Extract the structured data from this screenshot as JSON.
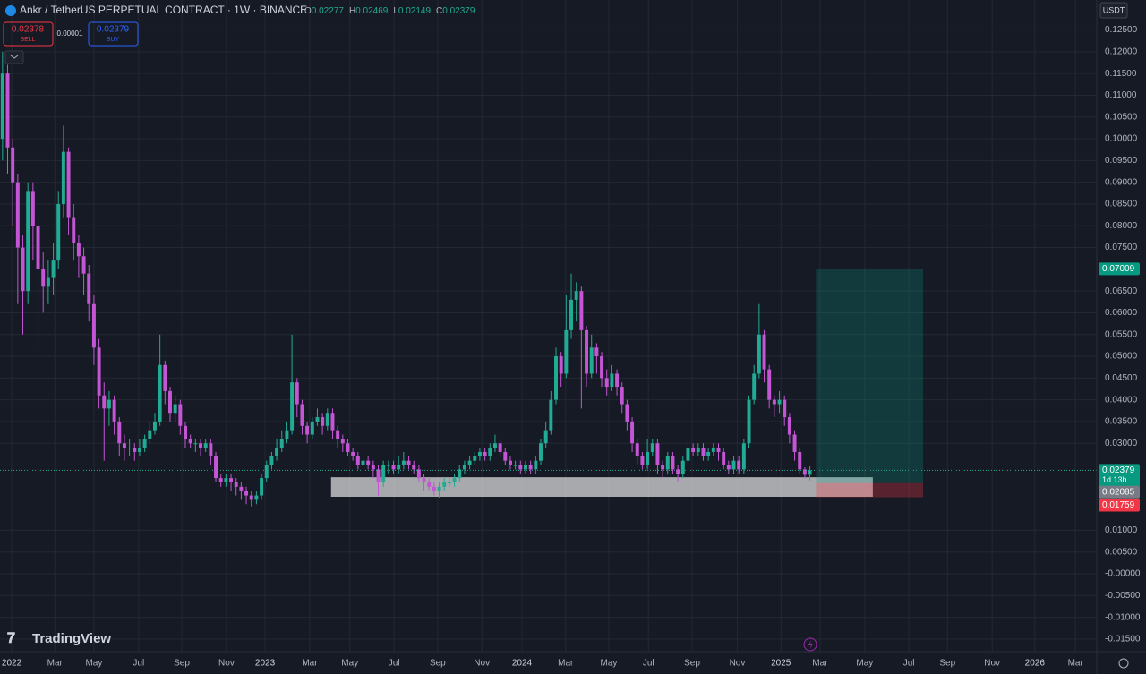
{
  "header": {
    "title": "Ankr / TetherUS PERPETUAL CONTRACT · 1W · BINANCE",
    "ohlc_labels": [
      "O",
      "H",
      "L",
      "C"
    ]
  },
  "trade": {
    "sell_price": 0.02378,
    "sell_label": "SELL",
    "spread": 1e-05,
    "buy_price": 0.02379,
    "buy_label": "BUY"
  },
  "currency": "USDT",
  "countdown": "1d 13h",
  "logo": "TradingView",
  "chart_data": {
    "type": "candlestick",
    "up_color": "#22ab94",
    "down_color": "#c455d4",
    "grid": true,
    "open": [
      0.1,
      0.115,
      0.098,
      0.09,
      0.075,
      0.065,
      0.088,
      0.08,
      0.07,
      0.066,
      0.068,
      0.072,
      0.085,
      0.097,
      0.082,
      0.076,
      0.073,
      0.069,
      0.062,
      0.052,
      0.041,
      0.038,
      0.04,
      0.035,
      0.03,
      0.029,
      0.029,
      0.028,
      0.029,
      0.031,
      0.033,
      0.035,
      0.048,
      0.042,
      0.037,
      0.039,
      0.034,
      0.031,
      0.03,
      0.03,
      0.029,
      0.03,
      0.027,
      0.022,
      0.021,
      0.022,
      0.021,
      0.02,
      0.019,
      0.018,
      0.017,
      0.018,
      0.022,
      0.025,
      0.027,
      0.029,
      0.031,
      0.033,
      0.044,
      0.039,
      0.034,
      0.032,
      0.035,
      0.036,
      0.034,
      0.037,
      0.033,
      0.031,
      0.03,
      0.028,
      0.027,
      0.025,
      0.026,
      0.025,
      0.024,
      0.021,
      0.025,
      0.025,
      0.024,
      0.025,
      0.026,
      0.025,
      0.024,
      0.022,
      0.021,
      0.02,
      0.019,
      0.02,
      0.021,
      0.021,
      0.022,
      0.024,
      0.025,
      0.026,
      0.027,
      0.028,
      0.027,
      0.029,
      0.03,
      0.028,
      0.026,
      0.025,
      0.025,
      0.024,
      0.025,
      0.024,
      0.026,
      0.03,
      0.033,
      0.04,
      0.05,
      0.046,
      0.056,
      0.063,
      0.065,
      0.056,
      0.046,
      0.052,
      0.05,
      0.045,
      0.043,
      0.046,
      0.043,
      0.039,
      0.035,
      0.03,
      0.027,
      0.025,
      0.028,
      0.03,
      0.025,
      0.024,
      0.027,
      0.024,
      0.023,
      0.026,
      0.029,
      0.028,
      0.029,
      0.027,
      0.028,
      0.029,
      0.028,
      0.025,
      0.024,
      0.026,
      0.024,
      0.03,
      0.04,
      0.046,
      0.055,
      0.047,
      0.04,
      0.039,
      0.04,
      0.036,
      0.032,
      0.028,
      0.024,
      0.02277
    ],
    "high": [
      0.12,
      0.117,
      0.1,
      0.092,
      0.078,
      0.09,
      0.09,
      0.082,
      0.074,
      0.072,
      0.076,
      0.088,
      0.103,
      0.098,
      0.085,
      0.078,
      0.075,
      0.071,
      0.064,
      0.054,
      0.044,
      0.042,
      0.041,
      0.036,
      0.032,
      0.031,
      0.03,
      0.031,
      0.032,
      0.035,
      0.037,
      0.055,
      0.049,
      0.043,
      0.041,
      0.04,
      0.035,
      0.032,
      0.031,
      0.031,
      0.031,
      0.031,
      0.028,
      0.023,
      0.023,
      0.023,
      0.022,
      0.021,
      0.02,
      0.019,
      0.019,
      0.023,
      0.026,
      0.028,
      0.031,
      0.033,
      0.035,
      0.055,
      0.045,
      0.04,
      0.035,
      0.036,
      0.038,
      0.037,
      0.038,
      0.038,
      0.034,
      0.032,
      0.031,
      0.029,
      0.028,
      0.027,
      0.027,
      0.026,
      0.025,
      0.026,
      0.026,
      0.026,
      0.027,
      0.028,
      0.027,
      0.026,
      0.025,
      0.023,
      0.022,
      0.021,
      0.021,
      0.022,
      0.022,
      0.023,
      0.025,
      0.026,
      0.027,
      0.028,
      0.029,
      0.029,
      0.03,
      0.032,
      0.031,
      0.029,
      0.027,
      0.026,
      0.026,
      0.026,
      0.026,
      0.027,
      0.031,
      0.035,
      0.042,
      0.052,
      0.051,
      0.064,
      0.069,
      0.067,
      0.066,
      0.057,
      0.055,
      0.053,
      0.051,
      0.047,
      0.048,
      0.047,
      0.044,
      0.04,
      0.036,
      0.031,
      0.028,
      0.031,
      0.031,
      0.031,
      0.026,
      0.028,
      0.028,
      0.025,
      0.027,
      0.03,
      0.03,
      0.03,
      0.03,
      0.029,
      0.03,
      0.03,
      0.029,
      0.026,
      0.027,
      0.027,
      0.031,
      0.041,
      0.048,
      0.062,
      0.056,
      0.048,
      0.041,
      0.042,
      0.041,
      0.037,
      0.033,
      0.029,
      0.0245,
      0.02469
    ],
    "low": [
      0.095,
      0.092,
      0.08,
      0.062,
      0.055,
      0.062,
      0.072,
      0.052,
      0.06,
      0.062,
      0.064,
      0.07,
      0.082,
      0.078,
      0.072,
      0.068,
      0.064,
      0.058,
      0.048,
      0.038,
      0.026,
      0.034,
      0.032,
      0.027,
      0.026,
      0.027,
      0.026,
      0.027,
      0.028,
      0.03,
      0.032,
      0.034,
      0.039,
      0.035,
      0.035,
      0.032,
      0.029,
      0.029,
      0.028,
      0.027,
      0.028,
      0.025,
      0.021,
      0.02,
      0.02,
      0.019,
      0.018,
      0.017,
      0.016,
      0.0155,
      0.016,
      0.017,
      0.021,
      0.024,
      0.026,
      0.028,
      0.03,
      0.032,
      0.036,
      0.032,
      0.03,
      0.031,
      0.034,
      0.032,
      0.033,
      0.031,
      0.029,
      0.028,
      0.027,
      0.026,
      0.024,
      0.024,
      0.024,
      0.022,
      0.018,
      0.02,
      0.023,
      0.023,
      0.023,
      0.024,
      0.024,
      0.023,
      0.021,
      0.019,
      0.019,
      0.018,
      0.0175,
      0.019,
      0.02,
      0.02,
      0.021,
      0.023,
      0.024,
      0.025,
      0.026,
      0.026,
      0.026,
      0.028,
      0.027,
      0.025,
      0.024,
      0.024,
      0.023,
      0.023,
      0.023,
      0.023,
      0.025,
      0.029,
      0.032,
      0.039,
      0.043,
      0.045,
      0.054,
      0.058,
      0.038,
      0.043,
      0.045,
      0.046,
      0.043,
      0.041,
      0.042,
      0.041,
      0.037,
      0.033,
      0.028,
      0.025,
      0.024,
      0.024,
      0.027,
      0.023,
      0.022,
      0.023,
      0.023,
      0.021,
      0.022,
      0.025,
      0.027,
      0.027,
      0.026,
      0.026,
      0.027,
      0.026,
      0.024,
      0.023,
      0.023,
      0.023,
      0.023,
      0.029,
      0.039,
      0.045,
      0.044,
      0.038,
      0.036,
      0.037,
      0.034,
      0.03,
      0.026,
      0.023,
      0.022,
      0.02149
    ],
    "close": [
      0.115,
      0.098,
      0.09,
      0.075,
      0.065,
      0.088,
      0.08,
      0.07,
      0.066,
      0.068,
      0.072,
      0.085,
      0.097,
      0.082,
      0.076,
      0.073,
      0.069,
      0.062,
      0.052,
      0.041,
      0.038,
      0.04,
      0.035,
      0.03,
      0.029,
      0.029,
      0.028,
      0.029,
      0.031,
      0.033,
      0.035,
      0.048,
      0.042,
      0.037,
      0.039,
      0.034,
      0.031,
      0.03,
      0.03,
      0.029,
      0.03,
      0.027,
      0.022,
      0.021,
      0.022,
      0.021,
      0.02,
      0.019,
      0.018,
      0.017,
      0.018,
      0.022,
      0.025,
      0.027,
      0.029,
      0.031,
      0.033,
      0.044,
      0.039,
      0.034,
      0.032,
      0.035,
      0.036,
      0.034,
      0.037,
      0.033,
      0.031,
      0.03,
      0.028,
      0.027,
      0.025,
      0.026,
      0.025,
      0.024,
      0.021,
      0.025,
      0.025,
      0.024,
      0.025,
      0.026,
      0.025,
      0.024,
      0.022,
      0.021,
      0.02,
      0.019,
      0.02,
      0.021,
      0.021,
      0.022,
      0.024,
      0.025,
      0.026,
      0.027,
      0.028,
      0.027,
      0.029,
      0.03,
      0.028,
      0.026,
      0.025,
      0.025,
      0.024,
      0.025,
      0.024,
      0.026,
      0.03,
      0.033,
      0.04,
      0.05,
      0.046,
      0.056,
      0.063,
      0.065,
      0.056,
      0.046,
      0.052,
      0.05,
      0.045,
      0.043,
      0.046,
      0.043,
      0.039,
      0.035,
      0.03,
      0.027,
      0.025,
      0.028,
      0.03,
      0.025,
      0.024,
      0.027,
      0.024,
      0.023,
      0.026,
      0.029,
      0.028,
      0.029,
      0.027,
      0.028,
      0.029,
      0.028,
      0.025,
      0.024,
      0.026,
      0.024,
      0.03,
      0.04,
      0.046,
      0.055,
      0.047,
      0.04,
      0.039,
      0.04,
      0.036,
      0.032,
      0.028,
      0.024,
      0.02277,
      0.02379
    ],
    "xlim": [
      -0.5,
      215.5
    ],
    "xticks": [
      {
        "value": 1.8,
        "label": "2022"
      },
      {
        "value": 10.3,
        "label": "Mar"
      },
      {
        "value": 18.0,
        "label": "May"
      },
      {
        "value": 26.8,
        "label": "Jul"
      },
      {
        "value": 35.3,
        "label": "Sep"
      },
      {
        "value": 44.1,
        "label": "Nov"
      },
      {
        "value": 51.7,
        "label": "2023"
      },
      {
        "value": 60.5,
        "label": "Mar"
      },
      {
        "value": 68.4,
        "label": "May"
      },
      {
        "value": 77.1,
        "label": "Jul"
      },
      {
        "value": 85.7,
        "label": "Sep"
      },
      {
        "value": 94.4,
        "label": "Nov"
      },
      {
        "value": 102.3,
        "label": "2024"
      },
      {
        "value": 110.9,
        "label": "Mar"
      },
      {
        "value": 119.4,
        "label": "May"
      },
      {
        "value": 127.2,
        "label": "Jul"
      },
      {
        "value": 135.8,
        "label": "Sep"
      },
      {
        "value": 144.7,
        "label": "Nov"
      },
      {
        "value": 153.3,
        "label": "2025"
      },
      {
        "value": 161.0,
        "label": "Mar"
      },
      {
        "value": 169.8,
        "label": "May"
      },
      {
        "value": 178.5,
        "label": "Jul"
      },
      {
        "value": 186.1,
        "label": "Sep"
      },
      {
        "value": 194.9,
        "label": "Nov"
      },
      {
        "value": 203.3,
        "label": "2026"
      },
      {
        "value": 211.3,
        "label": "Mar"
      }
    ],
    "ylim": [
      -0.0179,
      0.1315
    ],
    "yticks": [
      {
        "value": 0.125,
        "label": "0.12500"
      },
      {
        "value": 0.12,
        "label": "0.12000"
      },
      {
        "value": 0.115,
        "label": "0.11500"
      },
      {
        "value": 0.11,
        "label": "0.11000"
      },
      {
        "value": 0.105,
        "label": "0.10500"
      },
      {
        "value": 0.1,
        "label": "0.10000"
      },
      {
        "value": 0.095,
        "label": "0.09500"
      },
      {
        "value": 0.09,
        "label": "0.09000"
      },
      {
        "value": 0.085,
        "label": "0.08500"
      },
      {
        "value": 0.08,
        "label": "0.08000"
      },
      {
        "value": 0.075,
        "label": "0.07500"
      },
      {
        "value": 0.065,
        "label": "0.06500"
      },
      {
        "value": 0.06,
        "label": "0.06000"
      },
      {
        "value": 0.055,
        "label": "0.05500"
      },
      {
        "value": 0.05,
        "label": "0.05000"
      },
      {
        "value": 0.045,
        "label": "0.04500"
      },
      {
        "value": 0.04,
        "label": "0.04000"
      },
      {
        "value": 0.035,
        "label": "0.03500"
      },
      {
        "value": 0.03,
        "label": "0.03000"
      },
      {
        "value": 0.01,
        "label": "0.01000"
      },
      {
        "value": 0.005,
        "label": "0.00500"
      },
      {
        "value": 0,
        "label": "-0.00000"
      },
      {
        "value": -0.005,
        "label": "-0.00500"
      },
      {
        "value": -0.01,
        "label": "-0.01000"
      },
      {
        "value": -0.015,
        "label": "-0.01500"
      }
    ],
    "zone": {
      "top": 0.0222,
      "bottom": 0.0177,
      "start": 64.7,
      "end": 171.4,
      "color": "#d9d9d9"
    },
    "position": {
      "entry": 0.02085,
      "target": 0.07009,
      "stop": 0.01759,
      "start": 160.2,
      "end": 181.3
    }
  }
}
